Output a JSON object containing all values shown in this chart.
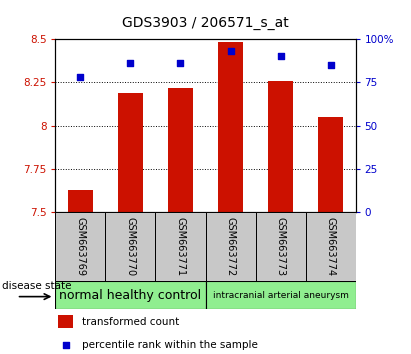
{
  "title": "GDS3903 / 206571_s_at",
  "samples": [
    "GSM663769",
    "GSM663770",
    "GSM663771",
    "GSM663772",
    "GSM663773",
    "GSM663774"
  ],
  "bar_values": [
    7.63,
    8.19,
    8.22,
    8.48,
    8.26,
    8.05
  ],
  "percentile_values": [
    78,
    86,
    86,
    93,
    90,
    85
  ],
  "bar_color": "#cc1100",
  "dot_color": "#0000cc",
  "ymin": 7.5,
  "ymax": 8.5,
  "yticks": [
    7.5,
    7.75,
    8.0,
    8.25,
    8.5
  ],
  "ytick_labels": [
    "7.5",
    "7.75",
    "8",
    "8.25",
    "8.5"
  ],
  "y2min": 0,
  "y2max": 100,
  "y2ticks": [
    0,
    25,
    50,
    75,
    100
  ],
  "y2tick_labels": [
    "0",
    "25",
    "50",
    "75",
    "100%"
  ],
  "groups": [
    {
      "label": "normal healthy control",
      "start": 0,
      "end": 3,
      "color": "#90ee90",
      "fontsize": 9
    },
    {
      "label": "intracranial arterial aneurysm",
      "start": 3,
      "end": 6,
      "color": "#90ee90",
      "fontsize": 6.5
    }
  ],
  "disease_state_label": "disease state",
  "legend_bar_label": "transformed count",
  "legend_dot_label": "percentile rank within the sample",
  "sample_box_color": "#c8c8c8",
  "title_fontsize": 10,
  "tick_fontsize": 7.5,
  "sample_fontsize": 7
}
